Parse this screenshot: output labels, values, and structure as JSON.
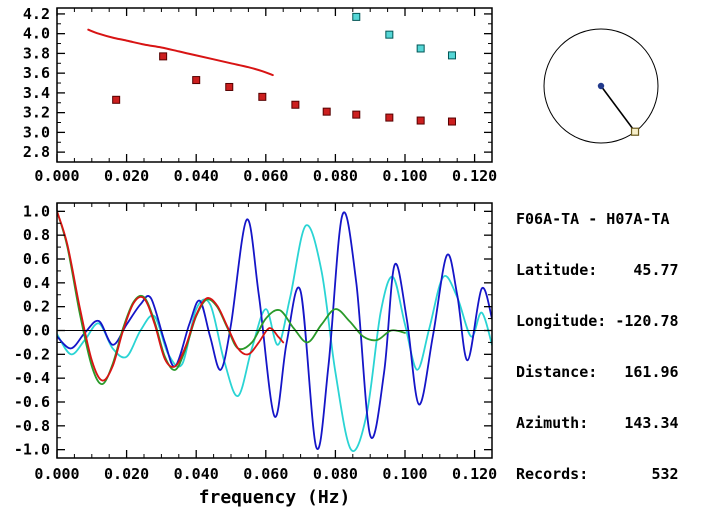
{
  "info": {
    "lines": [
      "F06A-TA - H07A-TA",
      "Latitude:    45.77",
      "Longitude: -120.78",
      "Distance:   161.96",
      "Azimuth:    143.34",
      "Records:       532"
    ]
  },
  "azimuth_plot": {
    "azimuth_deg": 143.34,
    "circle_color": "#000000",
    "center_dot_color": "#223a8c",
    "marker_fill": "#f7efc9",
    "marker_edge": "#6b5b1e"
  },
  "chart_data": [
    {
      "type": "scatter",
      "panel": "dispersion",
      "xlabel": "",
      "ylabel": "",
      "xlim": [
        0,
        0.125
      ],
      "ylim": [
        2.7,
        4.26
      ],
      "x_minor_step": 0.005,
      "y_minor_step": 0.1,
      "x_ticks": [
        0,
        0.02,
        0.04,
        0.06,
        0.08,
        0.1,
        0.12
      ],
      "x_tick_labels": [
        "0.000",
        "0.020",
        "0.040",
        "0.060",
        "0.080",
        "0.100",
        "0.120"
      ],
      "y_ticks": [
        2.8,
        3.0,
        3.2,
        3.4,
        3.6,
        3.8,
        4.0,
        4.2
      ],
      "y_tick_labels": [
        "2.8",
        "3.0",
        "3.2",
        "3.4",
        "3.6",
        "3.8",
        "4.0",
        "4.2"
      ],
      "zero_line": false,
      "series": [
        {
          "name": "reference-dispersion-curve",
          "type": "line",
          "color": "#d81414",
          "width": 2,
          "x": [
            0.009,
            0.012,
            0.016,
            0.02,
            0.025,
            0.03,
            0.035,
            0.04,
            0.045,
            0.05,
            0.055,
            0.059,
            0.062
          ],
          "y": [
            4.04,
            4.0,
            3.96,
            3.93,
            3.89,
            3.86,
            3.82,
            3.78,
            3.74,
            3.7,
            3.66,
            3.62,
            3.58
          ]
        },
        {
          "name": "accepted-measurements",
          "type": "scatter-square",
          "color": "#cc1f1f",
          "edge": "#550000",
          "yerr": 0.035,
          "x": [
            0.017,
            0.0305,
            0.04,
            0.0495,
            0.059,
            0.0685,
            0.0775,
            0.086,
            0.0955,
            0.1045,
            0.1135
          ],
          "y": [
            3.33,
            3.77,
            3.53,
            3.46,
            3.36,
            3.28,
            3.21,
            3.18,
            3.15,
            3.12,
            3.11
          ]
        },
        {
          "name": "rejected-measurements",
          "type": "scatter-square",
          "color": "#55d6d6",
          "edge": "#005555",
          "yerr": 0.035,
          "x": [
            0.086,
            0.0955,
            0.1045,
            0.1135
          ],
          "y": [
            4.17,
            3.99,
            3.85,
            3.78
          ]
        }
      ]
    },
    {
      "type": "line",
      "panel": "waveforms",
      "xlabel": "frequency (Hz)",
      "ylabel": "",
      "xlim": [
        0,
        0.125
      ],
      "ylim": [
        -1.07,
        1.07
      ],
      "x_minor_step": 0.005,
      "y_minor_step": 0.1,
      "x_ticks": [
        0,
        0.02,
        0.04,
        0.06,
        0.08,
        0.1,
        0.12
      ],
      "x_tick_labels": [
        "0.000",
        "0.020",
        "0.040",
        "0.060",
        "0.080",
        "0.100",
        "0.120"
      ],
      "y_ticks": [
        1.0,
        0.8,
        0.6,
        0.4,
        0.2,
        0.0,
        -0.2,
        -0.4,
        -0.6,
        -0.8,
        -1.0
      ],
      "y_tick_labels": [
        "1.0",
        "0.8",
        "0.6",
        "0.4",
        "0.2",
        "0.0",
        "-0.2",
        "-0.4",
        "-0.6",
        "-0.8",
        "-1.0"
      ],
      "zero_line": true,
      "series": [
        {
          "name": "waveform-cyan",
          "type": "line",
          "color": "#2ad4d4",
          "width": 1.8,
          "x": [
            0,
            0.004,
            0.008,
            0.012,
            0.016,
            0.02,
            0.024,
            0.028,
            0.032,
            0.036,
            0.04,
            0.044,
            0.048,
            0.052,
            0.056,
            0.06,
            0.0635,
            0.067,
            0.0715,
            0.076,
            0.08,
            0.0845,
            0.089,
            0.093,
            0.0965,
            0.1,
            0.1035,
            0.107,
            0.111,
            0.115,
            0.119,
            0.122,
            0.125
          ],
          "y": [
            -0.03,
            -0.2,
            -0.08,
            0.06,
            -0.15,
            -0.22,
            0.0,
            0.12,
            -0.2,
            -0.28,
            0.18,
            0.22,
            -0.25,
            -0.55,
            -0.15,
            0.18,
            -0.12,
            0.28,
            0.88,
            0.5,
            -0.35,
            -1.0,
            -0.7,
            0.15,
            0.45,
            0.05,
            -0.33,
            0.02,
            0.45,
            0.28,
            -0.05,
            0.15,
            -0.12
          ]
        },
        {
          "name": "waveform-blue",
          "type": "line",
          "color": "#1515c8",
          "width": 1.8,
          "x": [
            0,
            0.004,
            0.008,
            0.012,
            0.016,
            0.02,
            0.024,
            0.027,
            0.031,
            0.034,
            0.038,
            0.041,
            0.044,
            0.047,
            0.05,
            0.0545,
            0.058,
            0.0625,
            0.066,
            0.07,
            0.0745,
            0.078,
            0.082,
            0.086,
            0.09,
            0.094,
            0.097,
            0.1005,
            0.104,
            0.108,
            0.112,
            0.115,
            0.118,
            0.122,
            0.125
          ],
          "y": [
            -0.05,
            -0.15,
            -0.02,
            0.08,
            -0.12,
            0.05,
            0.22,
            0.27,
            -0.1,
            -0.3,
            0.05,
            0.25,
            -0.05,
            -0.33,
            0.05,
            0.93,
            0.3,
            -0.72,
            -0.1,
            0.33,
            -0.98,
            -0.3,
            0.97,
            0.4,
            -0.88,
            -0.35,
            0.55,
            0.1,
            -0.62,
            -0.05,
            0.63,
            0.3,
            -0.25,
            0.35,
            0.1
          ]
        },
        {
          "name": "waveform-green",
          "type": "line",
          "color": "#2a9a2a",
          "width": 1.8,
          "x": [
            0,
            0.003,
            0.0065,
            0.01,
            0.013,
            0.016,
            0.019,
            0.022,
            0.025,
            0.028,
            0.031,
            0.034,
            0.037,
            0.04,
            0.043,
            0.046,
            0.049,
            0.052,
            0.056,
            0.06,
            0.064,
            0.068,
            0.072,
            0.076,
            0.08,
            0.084,
            0.088,
            0.092,
            0.096,
            0.1
          ],
          "y": [
            1.0,
            0.7,
            0.15,
            -0.3,
            -0.45,
            -0.28,
            0.02,
            0.24,
            0.28,
            0.08,
            -0.22,
            -0.33,
            -0.15,
            0.12,
            0.26,
            0.2,
            0.02,
            -0.15,
            -0.1,
            0.1,
            0.17,
            0.02,
            -0.1,
            0.05,
            0.18,
            0.08,
            -0.05,
            -0.08,
            0.0,
            -0.02
          ]
        },
        {
          "name": "waveform-red",
          "type": "line",
          "color": "#d81414",
          "width": 1.8,
          "x": [
            0,
            0.003,
            0.0065,
            0.01,
            0.013,
            0.016,
            0.019,
            0.022,
            0.025,
            0.028,
            0.031,
            0.034,
            0.037,
            0.04,
            0.043,
            0.046,
            0.049,
            0.052,
            0.055,
            0.058,
            0.061,
            0.0635,
            0.065
          ],
          "y": [
            1.0,
            0.72,
            0.2,
            -0.25,
            -0.42,
            -0.3,
            0.0,
            0.23,
            0.27,
            0.06,
            -0.24,
            -0.3,
            -0.13,
            0.13,
            0.27,
            0.21,
            0.03,
            -0.15,
            -0.2,
            -0.1,
            0.02,
            -0.05,
            -0.1
          ]
        }
      ]
    }
  ]
}
